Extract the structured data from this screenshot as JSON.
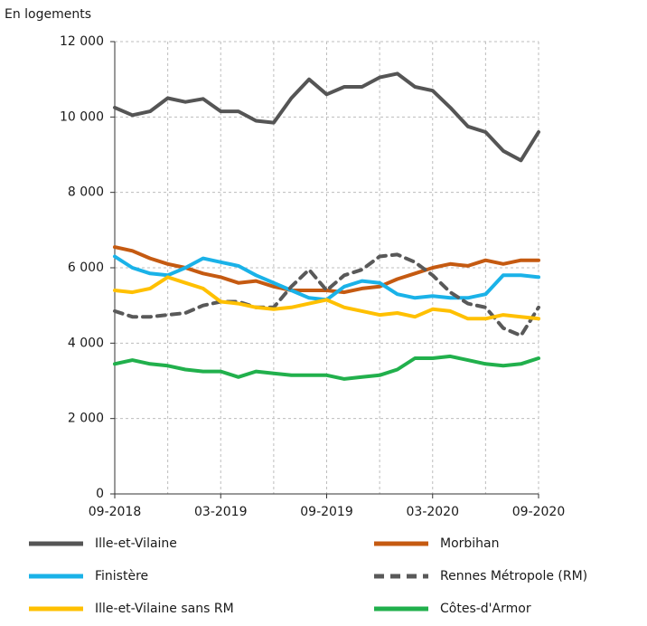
{
  "chart_data": {
    "type": "line",
    "y_label": "En logements",
    "categories": [
      "09-2018",
      null,
      null,
      null,
      null,
      null,
      "03-2019",
      null,
      null,
      null,
      null,
      null,
      "09-2019",
      null,
      null,
      null,
      null,
      null,
      "03-2020",
      null,
      null,
      null,
      null,
      null,
      "09-2020"
    ],
    "ylim": [
      0,
      12000
    ],
    "yticks": [
      0,
      {
        "value": 2000,
        "label": "2 000"
      },
      {
        "value": 4000,
        "label": "4 000"
      },
      {
        "value": 6000,
        "label": "6 000"
      },
      {
        "value": 8000,
        "label": "8 000"
      },
      {
        "value": 10000,
        "label": "10 000"
      },
      {
        "value": 12000,
        "label": "12 000"
      }
    ],
    "grid": true,
    "series": [
      {
        "name": "Ille-et-Vilaine",
        "color": "#555555",
        "values": [
          10250,
          10050,
          10150,
          10500,
          10400,
          10480,
          10150,
          10150,
          9900,
          9850,
          10500,
          11000,
          10600,
          10800,
          10800,
          11050,
          11150,
          10800,
          10700,
          10250,
          9750,
          9600,
          9100,
          8850,
          9600
        ]
      },
      {
        "name": "Morbihan",
        "color": "#c55a11",
        "values": [
          6550,
          6450,
          6250,
          6100,
          6000,
          5850,
          5750,
          5600,
          5650,
          5500,
          5400,
          5400,
          5400,
          5350,
          5450,
          5500,
          5700,
          5850,
          6000,
          6100,
          6050,
          6200,
          6100,
          6200,
          6200
        ]
      },
      {
        "name": "Finistère",
        "color": "#1ab2e8",
        "values": [
          6300,
          6000,
          5850,
          5800,
          6000,
          6250,
          6150,
          6050,
          5800,
          5600,
          5400,
          5200,
          5150,
          5500,
          5650,
          5600,
          5300,
          5200,
          5250,
          5200,
          5200,
          5300,
          5800,
          5800,
          5750
        ]
      },
      {
        "name": "Rennes Métropole (RM)",
        "color": "#595959",
        "line_style": "dashed",
        "values": [
          4850,
          4700,
          4700,
          4750,
          4800,
          5000,
          5100,
          5100,
          4950,
          4950,
          5500,
          5950,
          5400,
          5800,
          5950,
          6300,
          6350,
          6150,
          5800,
          5350,
          5050,
          4950,
          4400,
          4200,
          4950
        ]
      },
      {
        "name": "Ille-et-Vilaine sans RM",
        "color": "#ffc000",
        "values": [
          5400,
          5350,
          5450,
          5750,
          5600,
          5450,
          5100,
          5050,
          4950,
          4900,
          4950,
          5050,
          5150,
          4950,
          4850,
          4750,
          4800,
          4700,
          4900,
          4850,
          4650,
          4650,
          4750,
          4700,
          4650
        ]
      },
      {
        "name": "Côtes-d'Armor",
        "color": "#21b04c",
        "values": [
          3450,
          3550,
          3450,
          3400,
          3300,
          3250,
          3250,
          3100,
          3250,
          3200,
          3150,
          3150,
          3150,
          3050,
          3100,
          3150,
          3300,
          3600,
          3600,
          3650,
          3550,
          3450,
          3400,
          3450,
          3600
        ]
      }
    ]
  }
}
